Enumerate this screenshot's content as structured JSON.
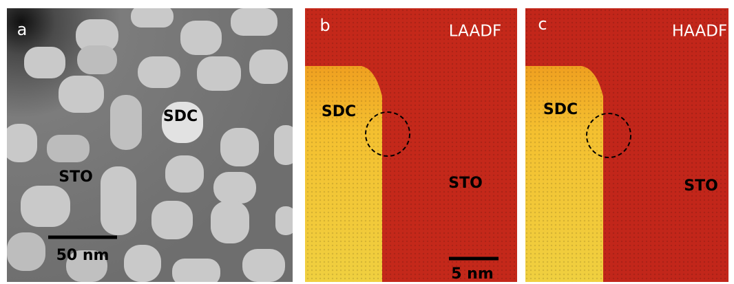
{
  "panels": [
    {
      "label": "a",
      "texts": [
        "SDC",
        "STO"
      ],
      "scale_bar": "50 nm"
    },
    {
      "label": "b",
      "mode": "LAADF",
      "texts": [
        "SDC",
        "STO"
      ],
      "scale_bar": "5 nm"
    },
    {
      "label": "c",
      "mode": "HAADF",
      "texts": [
        "SDC",
        "STO"
      ]
    }
  ]
}
